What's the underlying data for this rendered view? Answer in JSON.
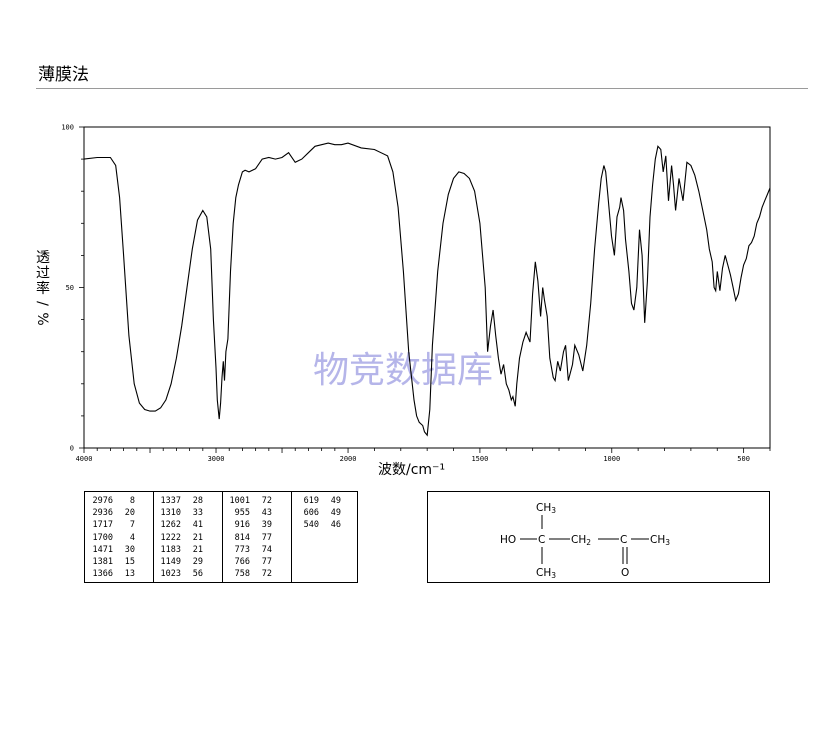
{
  "header": {
    "title": "薄膜法"
  },
  "chart_data": {
    "type": "line",
    "xlabel": "波数/cm⁻¹",
    "ylabel": [
      "透",
      "过",
      "率",
      "/",
      "%"
    ],
    "xlim": [
      4000,
      400
    ],
    "ylim": [
      0,
      100
    ],
    "x_ticks": [
      4000,
      3000,
      2000,
      1500,
      1000,
      500
    ],
    "x_ticks_display": [
      "4000",
      "3000",
      "2000",
      "1500",
      "1000",
      "500"
    ],
    "y_ticks": [
      0,
      50,
      100
    ],
    "y_ticks_display": [
      "0",
      "50",
      "100"
    ],
    "watermark": "物竞数据库",
    "line_color": "#000000",
    "series": [
      {
        "x": [
          4000,
          3900,
          3800,
          3760,
          3730,
          3700,
          3660,
          3620,
          3580,
          3540,
          3500,
          3460,
          3420,
          3380,
          3340,
          3300,
          3260,
          3220,
          3180,
          3140,
          3100,
          3070,
          3040,
          3020,
          3000,
          2990,
          2976,
          2965,
          2955,
          2945,
          2936,
          2925,
          2910,
          2890,
          2870,
          2850,
          2830,
          2800,
          2780,
          2750,
          2700,
          2650,
          2600,
          2550,
          2500,
          2450,
          2400,
          2350,
          2300,
          2250,
          2200,
          2150,
          2100,
          2050,
          2000,
          1950,
          1900,
          1850,
          1830,
          1810,
          1790,
          1770,
          1750,
          1740,
          1730,
          1717,
          1710,
          1700,
          1690,
          1680,
          1660,
          1640,
          1620,
          1600,
          1580,
          1560,
          1540,
          1520,
          1500,
          1480,
          1471,
          1460,
          1450,
          1440,
          1430,
          1420,
          1410,
          1400,
          1390,
          1381,
          1375,
          1366,
          1360,
          1350,
          1337,
          1325,
          1310,
          1300,
          1290,
          1280,
          1270,
          1262,
          1255,
          1245,
          1235,
          1222,
          1215,
          1205,
          1195,
          1183,
          1175,
          1165,
          1149,
          1140,
          1125,
          1110,
          1095,
          1080,
          1065,
          1050,
          1040,
          1030,
          1023,
          1015,
          1001,
          990,
          980,
          970,
          965,
          955,
          948,
          935,
          925,
          916,
          905,
          895,
          885,
          875,
          865,
          855,
          845,
          835,
          825,
          814,
          805,
          795,
          785,
          773,
          766,
          758,
          745,
          730,
          715,
          700,
          685,
          670,
          655,
          640,
          630,
          619,
          612,
          606,
          600,
          590,
          580,
          570,
          560,
          550,
          540,
          530,
          520,
          510,
          500,
          490,
          480,
          470,
          460,
          450,
          440,
          430,
          420,
          410,
          400
        ],
        "y": [
          90,
          90.5,
          90.5,
          88,
          78,
          60,
          35,
          20,
          14,
          12,
          11.5,
          11.5,
          12.5,
          15,
          20,
          28,
          38,
          50,
          62,
          71,
          74,
          72,
          62,
          40,
          25,
          15,
          9,
          14,
          22,
          27,
          21,
          30,
          34,
          55,
          70,
          78,
          82,
          86,
          86.5,
          86,
          87,
          90,
          90.5,
          90,
          90.5,
          92,
          89,
          90,
          92,
          94,
          94.5,
          95,
          94.5,
          94.5,
          95,
          93.5,
          93,
          91,
          86,
          75,
          55,
          30,
          15,
          10,
          8,
          7,
          5,
          4,
          12,
          32,
          55,
          70,
          79,
          84,
          86,
          85.5,
          84,
          80,
          70,
          50,
          30,
          38,
          43,
          35,
          28,
          23,
          26,
          20,
          18,
          15,
          16,
          13,
          20,
          28,
          33,
          36,
          33,
          48,
          58,
          52,
          41,
          50,
          46,
          41,
          28,
          22,
          21,
          27,
          24,
          30,
          32,
          21,
          26,
          32,
          29,
          24,
          32,
          45,
          62,
          76,
          84,
          88,
          86,
          79,
          66,
          60,
          72,
          75,
          78,
          74,
          65,
          55,
          45,
          43,
          50,
          68,
          60,
          39,
          52,
          72,
          82,
          90,
          94,
          93,
          86,
          91,
          77,
          88,
          82,
          74,
          84,
          77,
          89,
          88,
          85,
          80,
          74,
          68,
          62,
          58,
          50,
          49,
          55,
          49,
          56,
          60,
          57,
          54,
          50,
          46,
          48,
          53,
          57,
          59,
          63,
          64,
          66,
          70,
          72,
          75,
          77,
          79,
          81
        ]
      }
    ]
  },
  "peaks": {
    "columns": [
      [
        [
          "2976",
          "8"
        ],
        [
          "2936",
          "20"
        ],
        [
          "1717",
          "7"
        ],
        [
          "1700",
          "4"
        ],
        [
          "1471",
          "30"
        ],
        [
          "1381",
          "15"
        ],
        [
          "1366",
          "13"
        ]
      ],
      [
        [
          "1337",
          "28"
        ],
        [
          "1310",
          "33"
        ],
        [
          "1262",
          "41"
        ],
        [
          "1222",
          "21"
        ],
        [
          "1183",
          "21"
        ],
        [
          "1149",
          "29"
        ],
        [
          "1023",
          "56"
        ]
      ],
      [
        [
          "1001",
          "72"
        ],
        [
          "955",
          "43"
        ],
        [
          "916",
          "39"
        ],
        [
          "814",
          "77"
        ],
        [
          "773",
          "74"
        ],
        [
          "766",
          "77"
        ],
        [
          "758",
          "72"
        ]
      ],
      [
        [
          "619",
          "49"
        ],
        [
          "606",
          "49"
        ],
        [
          "540",
          "46"
        ]
      ]
    ]
  },
  "structure": {
    "ho": "HO",
    "c_center": "C",
    "ch3_top": "CH",
    "ch3_top_sub": "3",
    "ch3_bottom": "CH",
    "ch3_bottom_sub": "3",
    "ch2": "CH",
    "ch2_sub": "2",
    "c_carbonyl": "C",
    "o": "O",
    "ch3_right": "CH",
    "ch3_right_sub": "3"
  }
}
